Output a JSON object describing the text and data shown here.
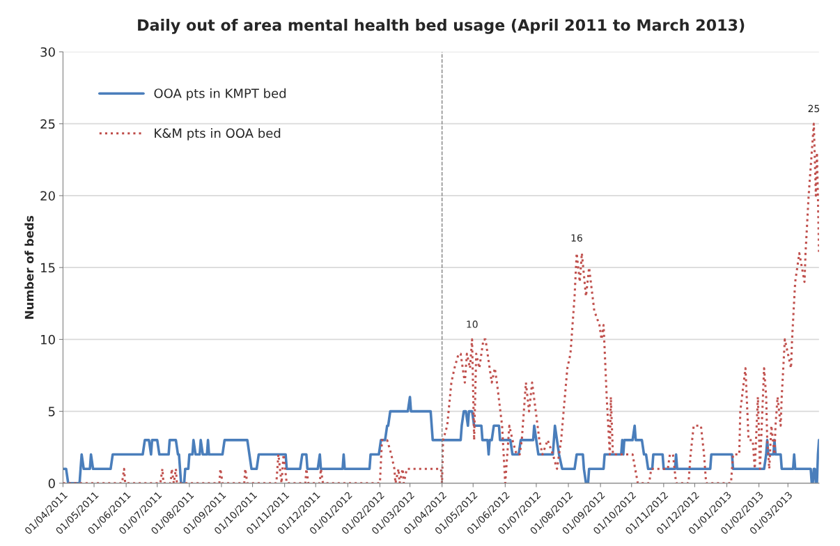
{
  "chart_data": {
    "type": "line",
    "title": "Daily out of area mental health bed usage (April 2011 to March 2013)",
    "ylabel": "Number of beds",
    "xlim": [
      "2011-04-01",
      "2013-03-31"
    ],
    "ylim": [
      0,
      30
    ],
    "yticks": [
      0,
      5,
      10,
      15,
      20,
      25,
      30
    ],
    "xticks": [
      {
        "value": "2011-04-01",
        "label": "01/04/2011"
      },
      {
        "value": "2011-05-01",
        "label": "01/05/2011"
      },
      {
        "value": "2011-06-01",
        "label": "01/06/2011"
      },
      {
        "value": "2011-07-01",
        "label": "01/07/2011"
      },
      {
        "value": "2011-08-01",
        "label": "01/08/2011"
      },
      {
        "value": "2011-09-01",
        "label": "01/09/2011"
      },
      {
        "value": "2011-10-01",
        "label": "01/10/2011"
      },
      {
        "value": "2011-11-01",
        "label": "01/11/2011"
      },
      {
        "value": "2011-12-01",
        "label": "01/12/2011"
      },
      {
        "value": "2012-01-01",
        "label": "01/01/2012"
      },
      {
        "value": "2012-02-01",
        "label": "01/02/2012"
      },
      {
        "value": "2012-03-01",
        "label": "01/03/2012"
      },
      {
        "value": "2012-04-01",
        "label": "01/04/2012"
      },
      {
        "value": "2012-05-01",
        "label": "01/05/2012"
      },
      {
        "value": "2012-06-01",
        "label": "01/06/2012"
      },
      {
        "value": "2012-07-01",
        "label": "01/07/2012"
      },
      {
        "value": "2012-08-01",
        "label": "01/08/2012"
      },
      {
        "value": "2012-09-01",
        "label": "01/09/2012"
      },
      {
        "value": "2012-10-01",
        "label": "01/10/2012"
      },
      {
        "value": "2012-11-01",
        "label": "01/11/2012"
      },
      {
        "value": "2012-12-01",
        "label": "01/12/2012"
      },
      {
        "value": "2013-01-01",
        "label": "01/01/2013"
      },
      {
        "value": "2013-02-01",
        "label": "01/02/2013"
      },
      {
        "value": "2013-03-01",
        "label": "01/03/2013"
      }
    ],
    "grid": "y",
    "legend": "top left",
    "ref_lines": [
      {
        "axis": "x",
        "value": "2012-04-01",
        "color": "#808080",
        "line_style": "dashed"
      }
    ],
    "annotations": [
      {
        "text": "10",
        "x": "2012-04-30",
        "y": 10
      },
      {
        "text": "16",
        "x": "2012-08-09",
        "y": 16
      },
      {
        "text": "25",
        "x": "2013-03-26",
        "y": 25
      }
    ],
    "series": [
      {
        "name": "OOA pts in KMPT bed",
        "color": "#4a7ebb",
        "line_style": "solid",
        "x": [
          "2011-04-01",
          "2011-04-04",
          "2011-04-06",
          "2011-04-17",
          "2011-04-18",
          "2011-04-19",
          "2011-04-21",
          "2011-04-27",
          "2011-04-28",
          "2011-04-30",
          "2011-05-17",
          "2011-05-19",
          "2011-06-17",
          "2011-06-19",
          "2011-06-23",
          "2011-06-25",
          "2011-06-26",
          "2011-07-01",
          "2011-07-03",
          "2011-07-12",
          "2011-07-13",
          "2011-07-19",
          "2011-07-21",
          "2011-07-22",
          "2011-07-24",
          "2011-07-27",
          "2011-07-28",
          "2011-07-31",
          "2011-08-01",
          "2011-08-04",
          "2011-08-05",
          "2011-08-07",
          "2011-08-11",
          "2011-08-12",
          "2011-08-14",
          "2011-08-18",
          "2011-08-19",
          "2011-08-20",
          "2011-09-02",
          "2011-09-04",
          "2011-09-26",
          "2011-09-30",
          "2011-10-05",
          "2011-10-07",
          "2011-11-02",
          "2011-11-03",
          "2011-11-16",
          "2011-11-18",
          "2011-11-22",
          "2011-11-23",
          "2011-12-03",
          "2011-12-05",
          "2011-12-06",
          "2011-12-27",
          "2011-12-28",
          "2011-12-29",
          "2012-01-22",
          "2012-01-23",
          "2012-01-31",
          "2012-02-02",
          "2012-02-06",
          "2012-02-08",
          "2012-02-09",
          "2012-02-11",
          "2012-02-28",
          "2012-03-01",
          "2012-03-02",
          "2012-03-21",
          "2012-03-23",
          "2012-04-19",
          "2012-04-20",
          "2012-04-22",
          "2012-04-24",
          "2012-04-26",
          "2012-04-27",
          "2012-04-30",
          "2012-05-02",
          "2012-05-09",
          "2012-05-10",
          "2012-05-15",
          "2012-05-16",
          "2012-05-17",
          "2012-05-19",
          "2012-05-21",
          "2012-05-26",
          "2012-05-27",
          "2012-06-06",
          "2012-06-08",
          "2012-06-14",
          "2012-06-16",
          "2012-06-28",
          "2012-06-29",
          "2012-07-01",
          "2012-07-03",
          "2012-07-17",
          "2012-07-19",
          "2012-07-21",
          "2012-07-23",
          "2012-07-26",
          "2012-08-07",
          "2012-08-09",
          "2012-08-15",
          "2012-08-16",
          "2012-08-18",
          "2012-08-20",
          "2012-08-21",
          "2012-09-04",
          "2012-09-05",
          "2012-09-21",
          "2012-09-22",
          "2012-09-23",
          "2012-09-24",
          "2012-10-02",
          "2012-10-04",
          "2012-10-05",
          "2012-10-11",
          "2012-10-13",
          "2012-10-15",
          "2012-10-17",
          "2012-10-21",
          "2012-10-22",
          "2012-10-31",
          "2012-11-01",
          "2012-11-12",
          "2012-11-13",
          "2012-11-14",
          "2012-12-16",
          "2012-12-17",
          "2013-01-06",
          "2013-01-07",
          "2013-02-06",
          "2013-02-08",
          "2013-02-09",
          "2013-02-10",
          "2013-02-15",
          "2013-02-16",
          "2013-02-17",
          "2013-02-22",
          "2013-02-23",
          "2013-03-06",
          "2013-03-07",
          "2013-03-08",
          "2013-03-23",
          "2013-03-24",
          "2013-03-25",
          "2013-03-26",
          "2013-03-27",
          "2013-03-28",
          "2013-03-29",
          "2013-03-30",
          "2013-03-31"
        ],
        "values": [
          1,
          1,
          0,
          0,
          1,
          2,
          1,
          1,
          2,
          1,
          1,
          2,
          2,
          3,
          3,
          2,
          3,
          3,
          2,
          2,
          3,
          3,
          2,
          2,
          0,
          0,
          1,
          1,
          2,
          2,
          3,
          2,
          2,
          3,
          2,
          2,
          3,
          2,
          2,
          3,
          3,
          1,
          1,
          2,
          2,
          1,
          1,
          2,
          2,
          1,
          1,
          2,
          1,
          1,
          2,
          1,
          1,
          2,
          2,
          3,
          3,
          4,
          4,
          5,
          5,
          6,
          5,
          5,
          3,
          3,
          4,
          5,
          5,
          4,
          5,
          5,
          4,
          4,
          3,
          3,
          2,
          3,
          3,
          4,
          4,
          3,
          3,
          2,
          2,
          3,
          3,
          4,
          3,
          2,
          2,
          4,
          3,
          2,
          1,
          1,
          2,
          2,
          1,
          0,
          0,
          1,
          1,
          2,
          2,
          3,
          2,
          3,
          3,
          4,
          3,
          3,
          2,
          2,
          1,
          1,
          2,
          2,
          1,
          1,
          2,
          1,
          1,
          2,
          2,
          1,
          1,
          2,
          3,
          2,
          2,
          3,
          2,
          2,
          1,
          1,
          2,
          1,
          1,
          0,
          0,
          1,
          1,
          0,
          0,
          2,
          3
        ]
      },
      {
        "name": "K&M pts in OOA bed",
        "color": "#c0504d",
        "line_style": "dotted",
        "x": [
          "2011-04-01",
          "2011-05-28",
          "2011-05-30",
          "2011-05-31",
          "2011-07-04",
          "2011-07-06",
          "2011-07-07",
          "2011-07-14",
          "2011-07-15",
          "2011-07-17",
          "2011-07-19",
          "2011-07-20",
          "2011-08-30",
          "2011-08-31",
          "2011-09-02",
          "2011-09-23",
          "2011-09-24",
          "2011-09-26",
          "2011-10-24",
          "2011-10-26",
          "2011-10-29",
          "2011-10-31",
          "2011-11-03",
          "2011-11-21",
          "2011-11-22",
          "2011-11-24",
          "2011-12-05",
          "2011-12-06",
          "2011-12-08",
          "2012-02-01",
          "2012-02-03",
          "2012-02-08",
          "2012-02-12",
          "2012-02-15",
          "2012-02-16",
          "2012-02-19",
          "2012-02-20",
          "2012-02-23",
          "2012-02-24",
          "2012-02-27",
          "2012-03-31",
          "2012-04-01",
          "2012-04-02",
          "2012-04-06",
          "2012-04-10",
          "2012-04-13",
          "2012-04-17",
          "2012-04-19",
          "2012-04-23",
          "2012-04-25",
          "2012-04-28",
          "2012-04-30",
          "2012-05-02",
          "2012-05-04",
          "2012-05-07",
          "2012-05-11",
          "2012-05-13",
          "2012-05-17",
          "2012-05-19",
          "2012-05-22",
          "2012-05-24",
          "2012-05-29",
          "2012-06-01",
          "2012-06-05",
          "2012-06-08",
          "2012-06-12",
          "2012-06-15",
          "2012-06-17",
          "2012-06-21",
          "2012-06-24",
          "2012-06-27",
          "2012-07-04",
          "2012-07-07",
          "2012-07-12",
          "2012-07-17",
          "2012-07-21",
          "2012-07-25",
          "2012-07-31",
          "2012-08-03",
          "2012-08-07",
          "2012-08-09",
          "2012-08-12",
          "2012-08-14",
          "2012-08-18",
          "2012-08-21",
          "2012-08-26",
          "2012-08-31",
          "2012-09-02",
          "2012-09-04",
          "2012-09-07",
          "2012-09-10",
          "2012-09-11",
          "2012-09-13",
          "2012-10-02",
          "2012-10-07",
          "2012-10-18",
          "2012-10-20",
          "2012-11-05",
          "2012-11-07",
          "2012-11-10",
          "2012-11-13",
          "2012-11-25",
          "2012-11-27",
          "2012-11-30",
          "2012-12-07",
          "2012-12-10",
          "2012-12-12",
          "2013-01-05",
          "2013-01-07",
          "2013-01-13",
          "2013-01-14",
          "2013-01-19",
          "2013-01-22",
          "2013-01-26",
          "2013-01-28",
          "2013-01-31",
          "2013-02-02",
          "2013-02-06",
          "2013-02-08",
          "2013-02-09",
          "2013-02-11",
          "2013-02-13",
          "2013-02-16",
          "2013-02-17",
          "2013-02-19",
          "2013-02-22",
          "2013-02-23",
          "2013-02-26",
          "2013-03-04",
          "2013-03-05",
          "2013-03-08",
          "2013-03-10",
          "2013-03-12",
          "2013-03-17",
          "2013-03-18",
          "2013-03-21",
          "2013-03-24",
          "2013-03-26",
          "2013-03-28",
          "2013-03-29",
          "2013-03-30",
          "2013-03-31"
        ],
        "values": [
          0,
          0,
          1,
          0,
          0,
          1,
          0,
          0,
          1,
          0,
          1,
          0,
          0,
          1,
          0,
          0,
          1,
          0,
          0,
          2,
          0,
          2,
          0,
          0,
          1,
          0,
          0,
          1,
          0,
          0,
          3,
          3,
          2,
          1,
          0,
          1,
          0,
          1,
          0,
          1,
          1,
          0,
          3,
          4,
          7,
          8,
          9,
          9,
          7,
          9,
          8,
          10,
          3,
          9,
          8,
          10,
          10,
          8,
          7,
          8,
          7,
          4,
          0,
          4,
          3,
          2,
          2,
          3,
          7,
          5,
          7,
          3,
          2,
          3,
          2,
          1,
          3,
          8,
          9,
          13,
          16,
          14,
          16,
          13,
          15,
          12,
          11,
          10,
          11,
          6,
          2,
          6,
          2,
          2,
          0,
          0,
          1,
          1,
          2,
          2,
          0,
          0,
          2,
          4,
          4,
          2,
          0,
          0,
          2,
          2,
          5,
          8,
          3,
          3,
          1,
          6,
          1,
          8,
          6,
          3,
          1,
          4,
          2,
          4,
          6,
          4,
          6,
          10,
          8,
          10,
          14,
          15,
          16,
          14,
          16,
          20,
          23,
          25,
          20,
          23,
          20,
          16
        ]
      }
    ]
  }
}
